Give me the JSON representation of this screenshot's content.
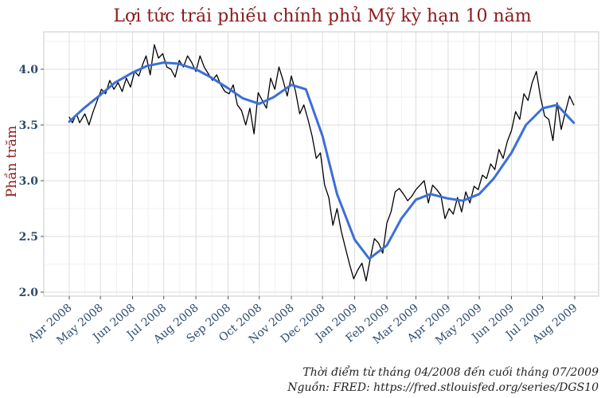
{
  "chart_data": {
    "type": "line",
    "title": "Lợi tức trái phiếu chính phủ Mỹ kỳ hạn 10 năm",
    "ylabel": "Phần trăm",
    "xlabel": "",
    "ylim": [
      2.0,
      4.3
    ],
    "yticks": [
      2.0,
      2.5,
      3.0,
      3.5,
      4.0
    ],
    "yticks_labels": [
      "2.0",
      "2.5",
      "3.0",
      "3.5",
      "4.0"
    ],
    "x_range": [
      "2008-04-01",
      "2009-07-31"
    ],
    "xticks": [
      {
        "date": "2008-04-01",
        "label": "Apr 2008"
      },
      {
        "date": "2008-05-01",
        "label": "May 2008"
      },
      {
        "date": "2008-06-01",
        "label": "Jun 2008"
      },
      {
        "date": "2008-07-01",
        "label": "Jul 2008"
      },
      {
        "date": "2008-08-01",
        "label": "Aug 2008"
      },
      {
        "date": "2008-09-01",
        "label": "Sep 2008"
      },
      {
        "date": "2008-10-01",
        "label": "Oct 2008"
      },
      {
        "date": "2008-11-01",
        "label": "Nov 2008"
      },
      {
        "date": "2008-12-01",
        "label": "Dec 2008"
      },
      {
        "date": "2009-01-01",
        "label": "Jan 2009"
      },
      {
        "date": "2009-02-01",
        "label": "Feb 2009"
      },
      {
        "date": "2009-03-01",
        "label": "Mar 2009"
      },
      {
        "date": "2009-04-01",
        "label": "Apr 2009"
      },
      {
        "date": "2009-05-01",
        "label": "May 2009"
      },
      {
        "date": "2009-06-01",
        "label": "Jun 2009"
      },
      {
        "date": "2009-07-01",
        "label": "Jul 2009"
      },
      {
        "date": "2009-08-01",
        "label": "Aug 2009"
      }
    ],
    "grid": true,
    "series": [
      {
        "color": "#000000",
        "x": [
          "2008-04-01",
          "2008-04-04",
          "2008-04-08",
          "2008-04-11",
          "2008-04-16",
          "2008-04-20",
          "2008-04-24",
          "2008-04-28",
          "2008-05-02",
          "2008-05-06",
          "2008-05-10",
          "2008-05-14",
          "2008-05-18",
          "2008-05-22",
          "2008-05-26",
          "2008-05-30",
          "2008-06-03",
          "2008-06-07",
          "2008-06-11",
          "2008-06-14",
          "2008-06-18",
          "2008-06-22",
          "2008-06-26",
          "2008-06-30",
          "2008-07-04",
          "2008-07-08",
          "2008-07-12",
          "2008-07-16",
          "2008-07-20",
          "2008-07-24",
          "2008-07-28",
          "2008-08-01",
          "2008-08-05",
          "2008-08-09",
          "2008-08-13",
          "2008-08-17",
          "2008-08-21",
          "2008-08-25",
          "2008-08-29",
          "2008-09-02",
          "2008-09-06",
          "2008-09-10",
          "2008-09-14",
          "2008-09-18",
          "2008-09-22",
          "2008-09-26",
          "2008-09-30",
          "2008-10-04",
          "2008-10-08",
          "2008-10-12",
          "2008-10-16",
          "2008-10-20",
          "2008-10-24",
          "2008-10-28",
          "2008-11-01",
          "2008-11-05",
          "2008-11-09",
          "2008-11-13",
          "2008-11-17",
          "2008-11-21",
          "2008-11-25",
          "2008-11-29",
          "2008-12-03",
          "2008-12-07",
          "2008-12-11",
          "2008-12-15",
          "2008-12-19",
          "2008-12-23",
          "2008-12-27",
          "2008-12-31",
          "2009-01-04",
          "2009-01-08",
          "2009-01-12",
          "2009-01-16",
          "2009-01-20",
          "2009-01-24",
          "2009-01-28",
          "2009-02-01",
          "2009-02-05",
          "2009-02-09",
          "2009-02-13",
          "2009-02-17",
          "2009-02-21",
          "2009-02-25",
          "2009-03-01",
          "2009-03-05",
          "2009-03-09",
          "2009-03-13",
          "2009-03-17",
          "2009-03-21",
          "2009-03-25",
          "2009-03-29",
          "2009-04-02",
          "2009-04-06",
          "2009-04-10",
          "2009-04-14",
          "2009-04-18",
          "2009-04-22",
          "2009-04-26",
          "2009-04-30",
          "2009-05-04",
          "2009-05-08",
          "2009-05-12",
          "2009-05-16",
          "2009-05-20",
          "2009-05-24",
          "2009-05-28",
          "2009-06-01",
          "2009-06-05",
          "2009-06-09",
          "2009-06-13",
          "2009-06-17",
          "2009-06-21",
          "2009-06-25",
          "2009-06-29",
          "2009-07-03",
          "2009-07-07",
          "2009-07-11",
          "2009-07-15",
          "2009-07-19",
          "2009-07-23",
          "2009-07-27",
          "2009-07-31"
        ],
        "y": [
          3.57,
          3.52,
          3.6,
          3.52,
          3.6,
          3.5,
          3.62,
          3.72,
          3.82,
          3.78,
          3.9,
          3.82,
          3.88,
          3.8,
          3.92,
          3.84,
          3.98,
          3.94,
          4.05,
          4.12,
          3.95,
          4.22,
          4.1,
          4.14,
          4.02,
          4.0,
          3.93,
          4.08,
          4.02,
          4.12,
          4.06,
          3.98,
          4.12,
          4.02,
          3.96,
          3.9,
          3.95,
          3.86,
          3.8,
          3.78,
          3.86,
          3.68,
          3.63,
          3.5,
          3.65,
          3.42,
          3.79,
          3.72,
          3.65,
          3.92,
          3.82,
          4.02,
          3.9,
          3.76,
          3.94,
          3.8,
          3.6,
          3.68,
          3.55,
          3.4,
          3.2,
          3.25,
          2.96,
          2.85,
          2.6,
          2.75,
          2.55,
          2.4,
          2.25,
          2.12,
          2.2,
          2.26,
          2.1,
          2.3,
          2.48,
          2.44,
          2.35,
          2.62,
          2.72,
          2.9,
          2.93,
          2.88,
          2.82,
          2.86,
          2.92,
          2.96,
          3.0,
          2.8,
          2.96,
          2.92,
          2.87,
          2.66,
          2.75,
          2.7,
          2.85,
          2.72,
          2.9,
          2.8,
          2.95,
          2.92,
          3.05,
          3.02,
          3.15,
          3.1,
          3.28,
          3.2,
          3.35,
          3.45,
          3.62,
          3.55,
          3.78,
          3.72,
          3.88,
          3.98,
          3.75,
          3.58,
          3.55,
          3.36,
          3.7,
          3.46,
          3.62,
          3.76,
          3.68
        ]
      },
      {
        "color": "#3b6fd9",
        "x": [
          "2008-04-01",
          "2008-04-15",
          "2008-05-01",
          "2008-05-15",
          "2008-06-01",
          "2008-06-15",
          "2008-07-01",
          "2008-07-15",
          "2008-08-01",
          "2008-08-15",
          "2008-09-01",
          "2008-09-15",
          "2008-10-01",
          "2008-10-15",
          "2008-11-01",
          "2008-11-15",
          "2008-12-01",
          "2008-12-15",
          "2009-01-01",
          "2009-01-15",
          "2009-02-01",
          "2009-02-15",
          "2009-03-01",
          "2009-03-15",
          "2009-04-01",
          "2009-04-15",
          "2009-05-01",
          "2009-05-15",
          "2009-06-01",
          "2009-06-15",
          "2009-07-01",
          "2009-07-15",
          "2009-07-31"
        ],
        "y": [
          3.53,
          3.65,
          3.77,
          3.88,
          3.97,
          4.03,
          4.06,
          4.05,
          4.0,
          3.93,
          3.83,
          3.74,
          3.69,
          3.75,
          3.86,
          3.82,
          3.4,
          2.88,
          2.47,
          2.3,
          2.42,
          2.66,
          2.83,
          2.88,
          2.84,
          2.82,
          2.88,
          3.02,
          3.25,
          3.5,
          3.65,
          3.68,
          3.52
        ]
      }
    ],
    "captions": [
      "Thời điểm từ tháng 04/2008 đến cuối tháng 07/2009",
      "Nguồn: FRED: https://fred.stlouisfed.org/series/DGS10"
    ]
  }
}
